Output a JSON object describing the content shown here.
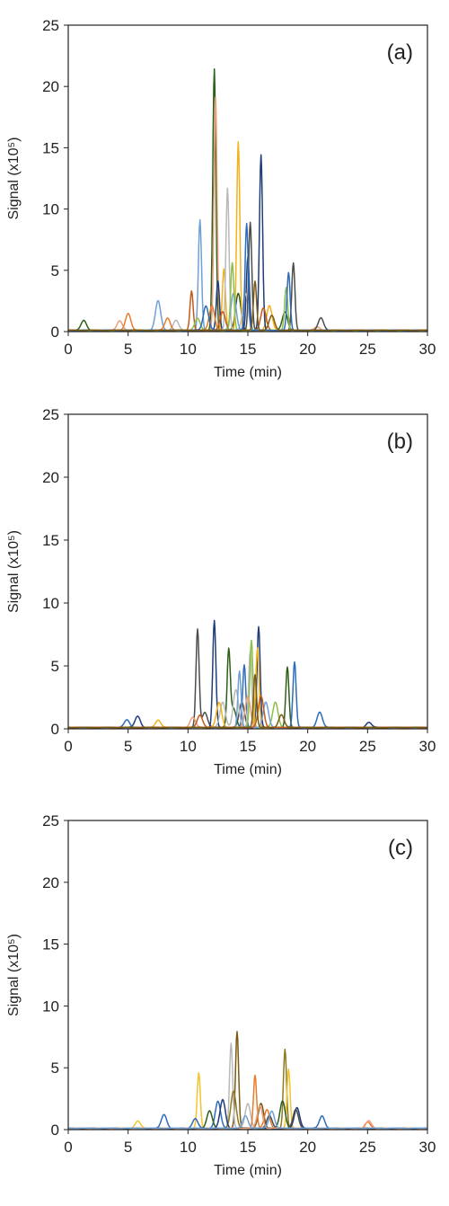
{
  "chart_data": [
    {
      "type": "line",
      "panel_label": "(a)",
      "xlabel": "Time (min)",
      "ylabel": "Signal (x10⁵)",
      "xlim": [
        0,
        30
      ],
      "ylim": [
        0,
        25
      ],
      "xticks": [
        "0",
        "5",
        "10",
        "15",
        "20",
        "25",
        "30"
      ],
      "yticks": [
        "0",
        "5",
        "10",
        "15",
        "20",
        "25"
      ],
      "grid": false,
      "series": [
        {
          "color": "#2e5f1a",
          "peaks": [
            [
              1.3,
              0.8
            ],
            [
              12.2,
              21.3
            ],
            [
              18.1,
              1.5
            ],
            [
              14.2,
              3.0
            ]
          ]
        },
        {
          "color": "#e8a07a",
          "peaks": [
            [
              12.3,
              19.0
            ],
            [
              4.3,
              0.8
            ],
            [
              20.8,
              0.3
            ]
          ]
        },
        {
          "color": "#f2b21b",
          "peaks": [
            [
              14.2,
              15.4
            ],
            [
              13.0,
              5.0
            ],
            [
              16.8,
              2.0
            ]
          ]
        },
        {
          "color": "#1f3d7a",
          "peaks": [
            [
              16.1,
              14.3
            ],
            [
              15.0,
              6.0
            ],
            [
              12.5,
              4.0
            ]
          ]
        },
        {
          "color": "#b9b9b9",
          "peaks": [
            [
              13.3,
              11.6
            ],
            [
              14.8,
              3.0
            ],
            [
              9.0,
              0.8
            ]
          ]
        },
        {
          "color": "#6fa0d6",
          "peaks": [
            [
              11.0,
              9.0
            ],
            [
              7.5,
              2.4
            ],
            [
              13.8,
              3.0
            ]
          ]
        },
        {
          "color": "#4d4d4d",
          "peaks": [
            [
              15.2,
              8.8
            ],
            [
              18.8,
              5.5
            ],
            [
              21.1,
              1.0
            ]
          ]
        },
        {
          "color": "#c45a1a",
          "peaks": [
            [
              10.3,
              3.2
            ],
            [
              16.3,
              1.8
            ],
            [
              12.9,
              1.5
            ]
          ]
        },
        {
          "color": "#e87d2e",
          "peaks": [
            [
              5.0,
              1.4
            ],
            [
              8.3,
              1.0
            ],
            [
              12.0,
              2.0
            ]
          ]
        },
        {
          "color": "#8fbf4a",
          "peaks": [
            [
              13.7,
              5.5
            ],
            [
              18.2,
              3.5
            ],
            [
              10.8,
              1.0
            ]
          ]
        },
        {
          "color": "#2f6bb8",
          "peaks": [
            [
              14.9,
              8.7
            ],
            [
              11.5,
              2.0
            ],
            [
              18.4,
              4.7
            ]
          ]
        },
        {
          "color": "#7b5a12",
          "peaks": [
            [
              15.6,
              4.0
            ],
            [
              17.0,
              1.2
            ]
          ]
        }
      ]
    },
    {
      "type": "line",
      "panel_label": "(b)",
      "xlabel": "Time (min)",
      "ylabel": "Signal (x10⁵)",
      "xlim": [
        0,
        30
      ],
      "ylim": [
        0,
        25
      ],
      "xticks": [
        "0",
        "5",
        "10",
        "15",
        "20",
        "25",
        "30"
      ],
      "yticks": [
        "0",
        "5",
        "10",
        "15",
        "20",
        "25"
      ],
      "grid": false,
      "series": [
        {
          "color": "#4d4d4d",
          "peaks": [
            [
              10.8,
              7.8
            ],
            [
              14.5,
              2.0
            ],
            [
              11.4,
              1.2
            ]
          ]
        },
        {
          "color": "#1f3d7a",
          "peaks": [
            [
              12.2,
              8.5
            ],
            [
              15.9,
              8.0
            ],
            [
              5.8,
              0.9
            ],
            [
              25.1,
              0.4
            ]
          ]
        },
        {
          "color": "#2e5f1a",
          "peaks": [
            [
              13.4,
              6.0
            ],
            [
              18.3,
              4.8
            ],
            [
              13.8,
              1.5
            ]
          ]
        },
        {
          "color": "#2f6bb8",
          "peaks": [
            [
              14.7,
              5.0
            ],
            [
              18.9,
              5.2
            ],
            [
              4.9,
              0.6
            ],
            [
              21.0,
              1.2
            ]
          ]
        },
        {
          "color": "#b9b9b9",
          "peaks": [
            [
              15.2,
              6.1
            ],
            [
              14.0,
              3.0
            ],
            [
              12.9,
              2.0
            ]
          ]
        },
        {
          "color": "#8fbf4a",
          "peaks": [
            [
              15.3,
              6.9
            ],
            [
              17.3,
              2.0
            ]
          ]
        },
        {
          "color": "#f2b21b",
          "peaks": [
            [
              15.8,
              6.3
            ],
            [
              7.5,
              0.6
            ],
            [
              12.6,
              2.0
            ]
          ]
        },
        {
          "color": "#e8a07a",
          "peaks": [
            [
              10.4,
              0.8
            ],
            [
              15.0,
              2.5
            ]
          ]
        },
        {
          "color": "#6fa0d6",
          "peaks": [
            [
              14.3,
              4.5
            ],
            [
              16.5,
              2.0
            ]
          ]
        },
        {
          "color": "#c45a1a",
          "peaks": [
            [
              16.1,
              2.5
            ],
            [
              11.0,
              1.0
            ]
          ]
        },
        {
          "color": "#7b5a12",
          "peaks": [
            [
              15.6,
              4.2
            ],
            [
              17.8,
              1.0
            ]
          ]
        }
      ]
    },
    {
      "type": "line",
      "panel_label": "(c)",
      "xlabel": "Time (min)",
      "ylabel": "Signal (x10⁵)",
      "xlim": [
        0,
        30
      ],
      "ylim": [
        0,
        25
      ],
      "xticks": [
        "0",
        "5",
        "10",
        "15",
        "20",
        "25",
        "30"
      ],
      "yticks": [
        "0",
        "5",
        "10",
        "15",
        "20",
        "25"
      ],
      "grid": false,
      "series": [
        {
          "color": "#7b5a12",
          "peaks": [
            [
              14.1,
              7.8
            ],
            [
              16.1,
              2.0
            ]
          ]
        },
        {
          "color": "#b9b9b9",
          "peaks": [
            [
              13.6,
              6.9
            ],
            [
              15.0,
              2.0
            ]
          ]
        },
        {
          "color": "#8f7a1f",
          "peaks": [
            [
              18.1,
              6.4
            ],
            [
              13.8,
              3.0
            ]
          ]
        },
        {
          "color": "#f2c431",
          "peaks": [
            [
              18.4,
              4.8
            ],
            [
              10.9,
              4.5
            ],
            [
              5.8,
              0.6
            ]
          ]
        },
        {
          "color": "#e87d2e",
          "peaks": [
            [
              15.6,
              4.3
            ],
            [
              16.6,
              1.5
            ],
            [
              25.0,
              0.5
            ]
          ]
        },
        {
          "color": "#2f6bb8",
          "peaks": [
            [
              8.0,
              1.1
            ],
            [
              12.5,
              2.2
            ],
            [
              21.2,
              1.0
            ],
            [
              10.6,
              0.8
            ]
          ]
        },
        {
          "color": "#2e5f1a",
          "peaks": [
            [
              11.8,
              1.4
            ],
            [
              17.9,
              2.2
            ]
          ]
        },
        {
          "color": "#1f3d7a",
          "peaks": [
            [
              12.9,
              2.3
            ],
            [
              19.1,
              1.7
            ]
          ]
        },
        {
          "color": "#4d4d4d",
          "peaks": [
            [
              19.0,
              1.5
            ],
            [
              16.8,
              1.0
            ]
          ]
        },
        {
          "color": "#e8a07a",
          "peaks": [
            [
              16.0,
              1.8
            ],
            [
              25.1,
              0.6
            ]
          ]
        },
        {
          "color": "#6fa0d6",
          "peaks": [
            [
              17.0,
              1.4
            ],
            [
              14.8,
              1.0
            ]
          ]
        }
      ]
    }
  ]
}
